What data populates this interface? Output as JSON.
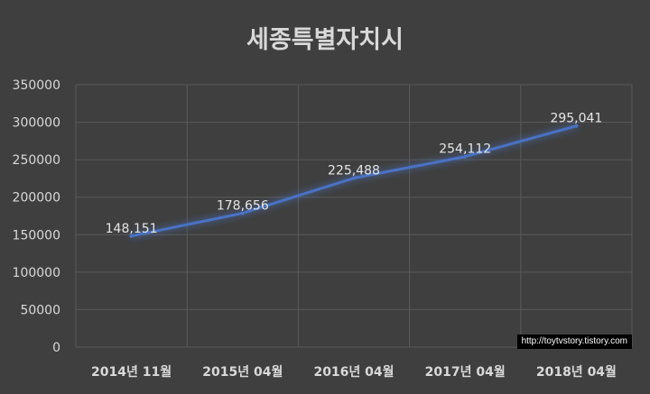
{
  "chart_data": {
    "type": "line",
    "title": "세종특별자치시",
    "categories": [
      "2014년 11월",
      "2015년 04월",
      "2016년 04월",
      "2017년 04월",
      "2018년 04월"
    ],
    "series": [
      {
        "values": [
          148151,
          178656,
          225488,
          254112,
          295041
        ],
        "labels": [
          "148,151",
          "178,656",
          "225,488",
          "254,112",
          "295,041"
        ],
        "color": "#4a72c4"
      }
    ],
    "ylim": [
      0,
      350000
    ],
    "yticks": [
      "0",
      "50000",
      "100000",
      "150000",
      "200000",
      "250000",
      "300000",
      "350000"
    ],
    "xlabel": "",
    "ylabel": "",
    "grid": true,
    "legend": "none"
  },
  "watermark": "http://toytvstory.tistory.com"
}
